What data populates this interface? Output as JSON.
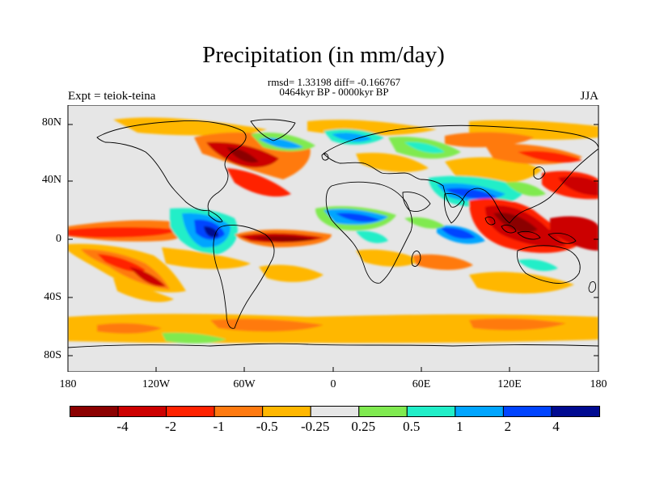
{
  "title": "Precipitation (in mm/day)",
  "stats_line": "rmsd= 1.33198  diff= -0.166767",
  "period_line": "0464kyr BP - 0000kyr BP",
  "experiment_label": "Expt = teiok-teina",
  "season_label": "JJA",
  "map": {
    "ocean_color": "#e6e6e6",
    "lat_ticks": [
      "80N",
      "40N",
      "0",
      "40S",
      "80S"
    ],
    "lon_ticks": [
      "180",
      "120W",
      "60W",
      "0",
      "60E",
      "120E",
      "180"
    ]
  },
  "colorbar": {
    "colors": [
      "#8b0000",
      "#cc0000",
      "#ff2200",
      "#ff7a10",
      "#ffb700",
      "#e6e6e6",
      "#80ea50",
      "#21eec8",
      "#00a5ff",
      "#0044ff",
      "#000a90"
    ],
    "labels": [
      "-4",
      "-2",
      "-1",
      "-0.5",
      "-0.25",
      "0.25",
      "0.5",
      "1",
      "2",
      "4"
    ]
  }
}
